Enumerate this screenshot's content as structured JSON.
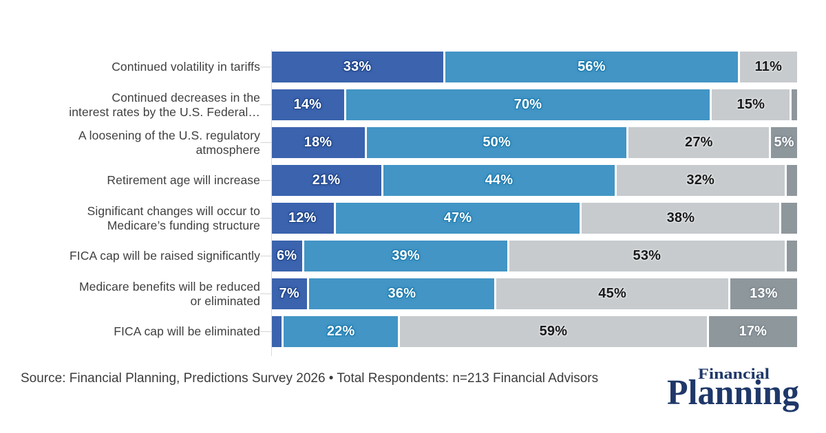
{
  "chart_data": {
    "type": "bar",
    "stacked": true,
    "orientation": "horizontal",
    "value_unit": "%",
    "xlim": [
      0,
      100
    ],
    "grid": false,
    "legend": "none",
    "label_min_value": 5,
    "categories": [
      "Continued volatility in tariffs",
      "Continued decreases in the\ninterest rates by the U.S. Federal…",
      "A loosening of the U.S. regulatory\natmosphere",
      "Retirement age will increase",
      "Significant changes will occur to\nMedicare’s funding structure",
      "FICA cap will be raised significantly",
      "Medicare benefits will be reduced\nor eliminated",
      "FICA cap will be eliminated"
    ],
    "series": [
      {
        "name": "dark-blue",
        "color": "#3B63AE",
        "label_color": "#FFFFFF",
        "label_halo": "#1E4387",
        "values": [
          33,
          14,
          18,
          21,
          12,
          6,
          7,
          2
        ]
      },
      {
        "name": "medium-blue",
        "color": "#4295C5",
        "label_color": "#FFFFFF",
        "label_halo": "#1C7AAD",
        "values": [
          56,
          70,
          50,
          44,
          47,
          39,
          36,
          22
        ]
      },
      {
        "name": "light-gray",
        "color": "#C7CBCE",
        "label_color": "#1A1A1A",
        "label_halo": "#E0E3E5",
        "values": [
          11,
          15,
          27,
          32,
          38,
          53,
          45,
          59
        ]
      },
      {
        "name": "dark-gray",
        "color": "#8E979C",
        "label_color": "#FFFFFF",
        "label_halo": "#79838A",
        "values": [
          0,
          1,
          5,
          2,
          3,
          2,
          13,
          17
        ]
      }
    ]
  },
  "footer": {
    "source_text": "Source: Financial Planning, Predictions Survey 2026 • Total Respondents: n=213 Financial Advisors",
    "logo": {
      "top_word": "Financial",
      "bottom_word": "Planning",
      "color": "#1F3869"
    }
  }
}
